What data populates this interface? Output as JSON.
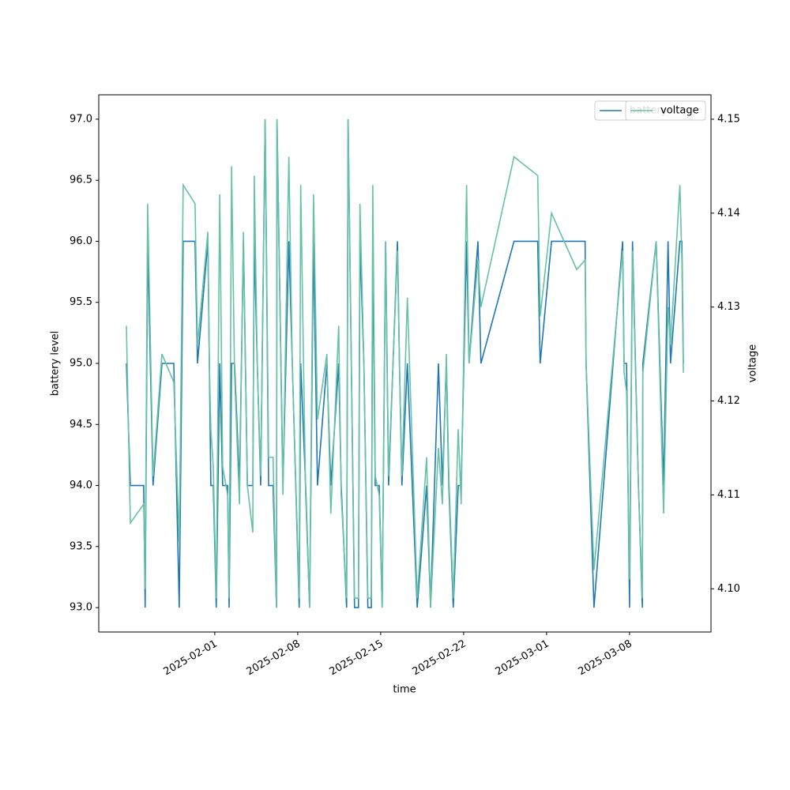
{
  "chart_data": {
    "type": "line",
    "xlabel": "time",
    "ylabel": "battery level",
    "y2label": "voltage",
    "legend": "upper right",
    "x": [
      "2025-01-24T13:00",
      "2025-01-24T21:00",
      "2025-01-26T00:00",
      "2025-01-26T03:00",
      "2025-01-26T08:00",
      "2025-01-26T19:00",
      "2025-01-27T13:00",
      "2025-01-28T13:00",
      "2025-01-29T00:00",
      "2025-01-29T08:00",
      "2025-01-30T08:00",
      "2025-01-30T13:00",
      "2025-01-31T10:00",
      "2025-01-31T13:00",
      "2025-01-31T16:00",
      "2025-01-31T21:00",
      "2025-02-01T03:00",
      "2025-02-01T10:00",
      "2025-02-01T16:00",
      "2025-02-02T02:00",
      "2025-02-02T05:00",
      "2025-02-02T10:00",
      "2025-02-02T16:00",
      "2025-02-03T02:00",
      "2025-02-03T10:00",
      "2025-02-03T18:00",
      "2025-02-04T05:00",
      "2025-02-04T08:00",
      "2025-02-04T14:00",
      "2025-02-04T21:00",
      "2025-02-05T06:00",
      "2025-02-05T13:00",
      "2025-02-05T22:00",
      "2025-02-06T05:00",
      "2025-02-06T06:00",
      "2025-02-06T18:00",
      "2025-02-07T06:00",
      "2025-02-07T13:00",
      "2025-02-08T03:00",
      "2025-02-08T06:00",
      "2025-02-08T16:00",
      "2025-02-09T00:00",
      "2025-02-09T08:00",
      "2025-02-09T16:00",
      "2025-02-10T11:00",
      "2025-02-10T19:00",
      "2025-02-11T11:00",
      "2025-02-11T16:00",
      "2025-02-12T03:00",
      "2025-02-12T06:00",
      "2025-02-12T19:00",
      "2025-02-13T03:00",
      "2025-02-13T06:00",
      "2025-02-13T14:00",
      "2025-02-13T22:00",
      "2025-02-14T05:00",
      "2025-02-14T08:00",
      "2025-02-14T13:00",
      "2025-02-14T21:00",
      "2025-02-15T03:00",
      "2025-02-15T10:00",
      "2025-02-15T16:00",
      "2025-02-16T10:00",
      "2025-02-16T14:00",
      "2025-02-16T19:00",
      "2025-02-17T06:00",
      "2025-02-18T02:00",
      "2025-02-18T21:00",
      "2025-02-19T05:00",
      "2025-02-19T21:00",
      "2025-02-20T05:00",
      "2025-02-20T13:00",
      "2025-02-20T18:00",
      "2025-02-21T03:00",
      "2025-02-21T13:00",
      "2025-02-21T19:00",
      "2025-02-22T06:00",
      "2025-02-22T11:00",
      "2025-02-23T05:00",
      "2025-02-23T11:00",
      "2025-02-26T06:00",
      "2025-02-28T06:00",
      "2025-02-28T11:00",
      "2025-03-01T10:00",
      "2025-03-03T13:00",
      "2025-03-04T06:00",
      "2025-03-04T08:00",
      "2025-03-05T00:00",
      "2025-03-07T10:00",
      "2025-03-07T13:00",
      "2025-03-07T18:00",
      "2025-03-08T00:00",
      "2025-03-08T06:00",
      "2025-03-08T18:00",
      "2025-03-09T02:00",
      "2025-03-09T03:00",
      "2025-03-10T06:00",
      "2025-03-10T21:00",
      "2025-03-11T06:00",
      "2025-03-11T11:00",
      "2025-03-12T06:00",
      "2025-03-12T10:00",
      "2025-03-12T13:00"
    ],
    "series": [
      {
        "name": "battery",
        "color": "#1f77b4",
        "values": [
          95,
          94,
          94,
          93,
          96,
          94,
          95,
          95,
          93,
          96,
          96,
          95,
          96,
          95,
          94,
          94,
          93,
          95,
          94,
          94,
          93,
          95,
          95,
          94,
          96,
          94,
          94,
          96,
          95,
          94,
          97,
          94,
          94,
          93,
          97,
          94,
          96,
          95,
          93,
          95,
          94,
          93,
          96,
          94,
          95,
          94,
          95,
          94,
          93,
          97,
          93,
          93,
          96,
          95,
          93,
          93,
          96,
          94,
          94,
          93,
          96,
          94,
          96,
          95,
          94,
          95,
          93,
          94,
          93,
          95,
          94,
          95,
          94,
          93,
          94,
          94,
          96,
          95,
          96,
          95,
          96,
          96,
          95,
          96,
          96,
          96,
          95,
          93,
          96,
          95,
          95,
          93,
          96,
          94,
          93,
          95,
          96,
          94,
          96,
          95,
          96,
          96,
          95
        ]
      },
      {
        "name": "voltage",
        "color": "#66c2a5",
        "axis": "y2",
        "values": [
          4.128,
          4.107,
          4.109,
          4.1,
          4.141,
          4.112,
          4.125,
          4.122,
          4.105,
          4.143,
          4.141,
          4.126,
          4.138,
          4.124,
          4.117,
          4.113,
          4.099,
          4.142,
          4.113,
          4.11,
          4.099,
          4.145,
          4.123,
          4.109,
          4.138,
          4.111,
          4.106,
          4.144,
          4.124,
          4.112,
          4.15,
          4.114,
          4.114,
          4.098,
          4.15,
          4.11,
          4.146,
          4.124,
          4.099,
          4.143,
          4.11,
          4.098,
          4.142,
          4.118,
          4.125,
          4.108,
          4.128,
          4.11,
          4.099,
          4.15,
          4.099,
          4.099,
          4.141,
          4.124,
          4.099,
          4.099,
          4.143,
          4.112,
          4.11,
          4.098,
          4.137,
          4.112,
          4.136,
          4.124,
          4.112,
          4.131,
          4.099,
          4.114,
          4.098,
          4.115,
          4.109,
          4.125,
          4.112,
          4.099,
          4.117,
          4.109,
          4.143,
          4.124,
          4.135,
          4.13,
          4.146,
          4.144,
          4.129,
          4.14,
          4.134,
          4.135,
          4.124,
          4.102,
          4.136,
          4.123,
          4.121,
          4.101,
          4.136,
          4.111,
          4.099,
          4.123,
          4.137,
          4.108,
          4.13,
          4.126,
          4.143,
          4.135,
          4.123
        ]
      }
    ],
    "xlim": [
      "2025-01-22T05:00",
      "2025-03-14T21:00"
    ],
    "xticks": [
      "2025-02-01",
      "2025-02-08",
      "2025-02-15",
      "2025-02-22",
      "2025-03-01",
      "2025-03-08"
    ],
    "ylim": [
      92.8,
      97.2
    ],
    "yticks": [
      {
        "value": 93,
        "label": "93.0"
      },
      93.5,
      {
        "value": 94,
        "label": "94.0"
      },
      94.5,
      {
        "value": 95,
        "label": "95.0"
      },
      95.5,
      {
        "value": 96,
        "label": "96.0"
      },
      96.5,
      {
        "value": 97,
        "label": "97.0"
      }
    ],
    "y2lim": [
      4.0954,
      4.1526
    ],
    "y2ticks": [
      {
        "value": 4.1,
        "label": "4.10"
      },
      4.11,
      4.12,
      4.13,
      4.14,
      4.15
    ]
  }
}
